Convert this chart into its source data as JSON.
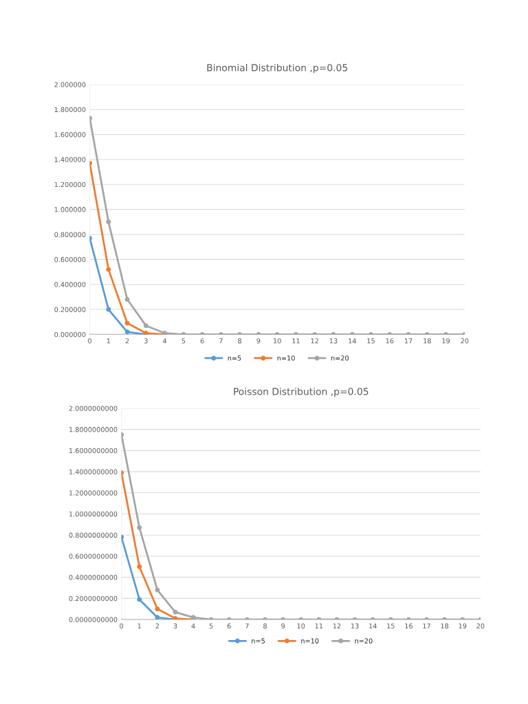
{
  "chart_data": [
    {
      "type": "line",
      "title": "Binomial Distribution ,p=0.05",
      "categories": [
        "0",
        "1",
        "2",
        "3",
        "4",
        "5",
        "6",
        "7",
        "8",
        "9",
        "10",
        "11",
        "12",
        "13",
        "14",
        "15",
        "16",
        "17",
        "18",
        "19",
        "20"
      ],
      "series": [
        {
          "name": "n=5",
          "color": "#5b9bd5",
          "values": [
            0.77,
            0.2,
            0.02,
            0,
            null,
            null,
            null,
            null,
            null,
            null,
            null,
            null,
            null,
            null,
            null,
            null,
            null,
            null,
            null,
            null,
            null
          ]
        },
        {
          "name": "n=10",
          "color": "#ed7d31",
          "values": [
            1.37,
            0.52,
            0.09,
            0.01,
            0,
            null,
            null,
            null,
            null,
            null,
            null,
            null,
            null,
            null,
            null,
            null,
            null,
            null,
            null,
            null,
            null
          ]
        },
        {
          "name": "n=20",
          "color": "#a5a5a5",
          "values": [
            1.73,
            0.9,
            0.28,
            0.07,
            0.01,
            0,
            0,
            0,
            0,
            0,
            0,
            0,
            0,
            0,
            0,
            0,
            0,
            0,
            0,
            0,
            0
          ]
        }
      ],
      "ylim": [
        0,
        2
      ],
      "yticks": [
        {
          "value": 0,
          "label": "0.000000"
        },
        {
          "value": 0.2,
          "label": "0.200000"
        },
        {
          "value": 0.4,
          "label": "0.400000"
        },
        {
          "value": 0.6,
          "label": "0.600000"
        },
        {
          "value": 0.8,
          "label": "0.800000"
        },
        {
          "value": 1,
          "label": "1.000000"
        },
        {
          "value": 1.2,
          "label": "1.200000"
        },
        {
          "value": 1.4,
          "label": "1.400000"
        },
        {
          "value": 1.6,
          "label": "1.600000"
        },
        {
          "value": 1.8,
          "label": "1.800000"
        },
        {
          "value": 2,
          "label": "2.000000"
        }
      ],
      "grid": "y",
      "legend": "bottom",
      "marker": "circle",
      "line_style": "solid"
    },
    {
      "type": "line",
      "title": "Poisson Distribution ,p=0.05",
      "categories": [
        "0",
        "1",
        "2",
        "3",
        "4",
        "5",
        "6",
        "7",
        "8",
        "9",
        "10",
        "11",
        "12",
        "13",
        "14",
        "15",
        "16",
        "17",
        "18",
        "19",
        "20"
      ],
      "series": [
        {
          "name": "n=5",
          "color": "#5b9bd5",
          "values": [
            0.78,
            0.19,
            0.02,
            0,
            null,
            null,
            null,
            null,
            null,
            null,
            null,
            null,
            null,
            null,
            null,
            null,
            null,
            null,
            null,
            null,
            null
          ]
        },
        {
          "name": "n=10",
          "color": "#ed7d31",
          "values": [
            1.39,
            0.5,
            0.1,
            0.01,
            0,
            null,
            null,
            null,
            null,
            null,
            null,
            null,
            null,
            null,
            null,
            null,
            null,
            null,
            null,
            null,
            null
          ]
        },
        {
          "name": "n=20",
          "color": "#a5a5a5",
          "values": [
            1.75,
            0.87,
            0.28,
            0.07,
            0.02,
            0,
            0,
            0,
            0,
            0,
            0,
            0,
            0,
            0,
            0,
            0,
            0,
            0,
            0,
            0,
            0
          ]
        }
      ],
      "ylim": [
        0,
        2
      ],
      "yticks": [
        {
          "value": 0,
          "label": "0.0000000000"
        },
        {
          "value": 0.2,
          "label": "0.2000000000"
        },
        {
          "value": 0.4,
          "label": "0.4000000000"
        },
        {
          "value": 0.6,
          "label": "0.6000000000"
        },
        {
          "value": 0.8,
          "label": "0.8000000000"
        },
        {
          "value": 1,
          "label": "1.0000000000"
        },
        {
          "value": 1.2,
          "label": "1.2000000000"
        },
        {
          "value": 1.4,
          "label": "1.4000000000"
        },
        {
          "value": 1.6,
          "label": "1.6000000000"
        },
        {
          "value": 1.8,
          "label": "1.8000000000"
        },
        {
          "value": 2,
          "label": "2.0000000000"
        }
      ],
      "grid": "y",
      "legend": "bottom",
      "marker": "circle",
      "line_style": "solid"
    }
  ]
}
